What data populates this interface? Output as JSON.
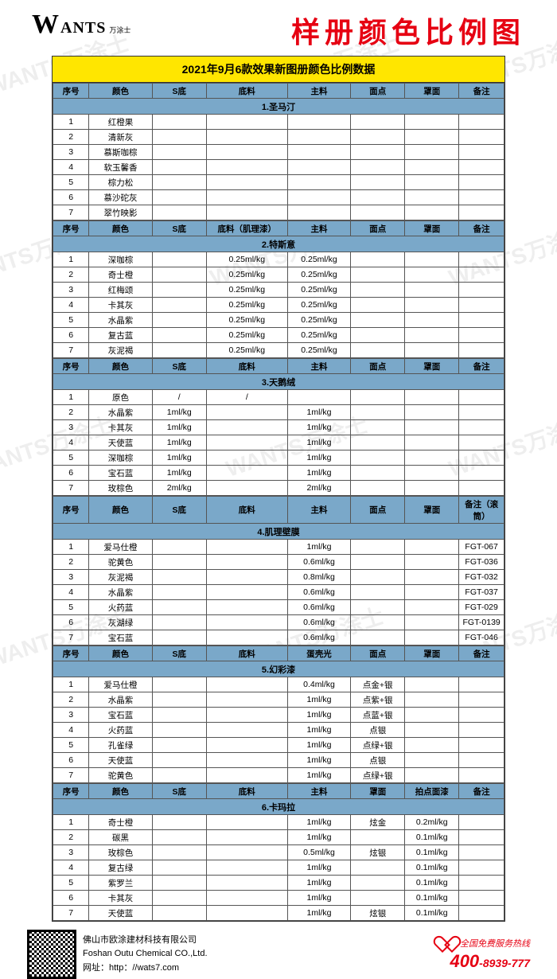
{
  "logo": {
    "w": "W",
    "ants": "ANTS",
    "cn": "万涂士"
  },
  "title": "样册颜色比例图",
  "banner": "2021年9月6款效果新图册颜色比例数据",
  "watermark_text": "WANTS万涂士",
  "columns_default": [
    "序号",
    "颜色",
    "S底",
    "底料",
    "主料",
    "面点",
    "罩面",
    "备注"
  ],
  "sections": [
    {
      "name": "1.圣马汀",
      "headers": [
        "序号",
        "颜色",
        "S底",
        "底料",
        "主料",
        "面点",
        "罩面",
        "备注"
      ],
      "rows": [
        [
          "1",
          "红橙果",
          "",
          "",
          "",
          "",
          "",
          ""
        ],
        [
          "2",
          "清新灰",
          "",
          "",
          "",
          "",
          "",
          ""
        ],
        [
          "3",
          "慕斯咖棕",
          "",
          "",
          "",
          "",
          "",
          ""
        ],
        [
          "4",
          "软玉馨香",
          "",
          "",
          "",
          "",
          "",
          ""
        ],
        [
          "5",
          "棕力松",
          "",
          "",
          "",
          "",
          "",
          ""
        ],
        [
          "6",
          "慕沙砣灰",
          "",
          "",
          "",
          "",
          "",
          ""
        ],
        [
          "7",
          "翠竹映影",
          "",
          "",
          "",
          "",
          "",
          ""
        ]
      ]
    },
    {
      "name": "2.特斯意",
      "headers": [
        "序号",
        "颜色",
        "S底",
        "底料（肌理漆）",
        "主料",
        "面点",
        "罩面",
        "备注"
      ],
      "rows": [
        [
          "1",
          "深咖棕",
          "",
          "0.25ml/kg",
          "0.25ml/kg",
          "",
          "",
          ""
        ],
        [
          "2",
          "奇士橙",
          "",
          "0.25ml/kg",
          "0.25ml/kg",
          "",
          "",
          ""
        ],
        [
          "3",
          "红梅颂",
          "",
          "0.25ml/kg",
          "0.25ml/kg",
          "",
          "",
          ""
        ],
        [
          "4",
          "卡其灰",
          "",
          "0.25ml/kg",
          "0.25ml/kg",
          "",
          "",
          ""
        ],
        [
          "5",
          "水晶紫",
          "",
          "0.25ml/kg",
          "0.25ml/kg",
          "",
          "",
          ""
        ],
        [
          "6",
          "复古蓝",
          "",
          "0.25ml/kg",
          "0.25ml/kg",
          "",
          "",
          ""
        ],
        [
          "7",
          "灰泥褐",
          "",
          "0.25ml/kg",
          "0.25ml/kg",
          "",
          "",
          ""
        ]
      ]
    },
    {
      "name": "3.天鹅绒",
      "headers": [
        "序号",
        "颜色",
        "S底",
        "底料",
        "主料",
        "面点",
        "罩面",
        "备注"
      ],
      "rows": [
        [
          "1",
          "原色",
          "/",
          "/",
          "",
          "",
          "",
          ""
        ],
        [
          "2",
          "水晶紫",
          "1ml/kg",
          "",
          "1ml/kg",
          "",
          "",
          ""
        ],
        [
          "3",
          "卡其灰",
          "1ml/kg",
          "",
          "1ml/kg",
          "",
          "",
          ""
        ],
        [
          "4",
          "天使蓝",
          "1ml/kg",
          "",
          "1ml/kg",
          "",
          "",
          ""
        ],
        [
          "5",
          "深咖棕",
          "1ml/kg",
          "",
          "1ml/kg",
          "",
          "",
          ""
        ],
        [
          "6",
          "宝石蓝",
          "1ml/kg",
          "",
          "1ml/kg",
          "",
          "",
          ""
        ],
        [
          "7",
          "玫棕色",
          "2ml/kg",
          "",
          "2ml/kg",
          "",
          "",
          ""
        ]
      ]
    },
    {
      "name": "4.肌理壁膜",
      "headers": [
        "序号",
        "颜色",
        "S底",
        "底料",
        "主料",
        "面点",
        "罩面",
        "备注（滚筒）"
      ],
      "rows": [
        [
          "1",
          "爱马仕橙",
          "",
          "",
          "1ml/kg",
          "",
          "",
          "FGT-067"
        ],
        [
          "2",
          "驼黄色",
          "",
          "",
          "0.6ml/kg",
          "",
          "",
          "FGT-036"
        ],
        [
          "3",
          "灰泥褐",
          "",
          "",
          "0.8ml/kg",
          "",
          "",
          "FGT-032"
        ],
        [
          "4",
          "水晶紫",
          "",
          "",
          "0.6ml/kg",
          "",
          "",
          "FGT-037"
        ],
        [
          "5",
          "火药蓝",
          "",
          "",
          "0.6ml/kg",
          "",
          "",
          "FGT-029"
        ],
        [
          "6",
          "灰湖绿",
          "",
          "",
          "0.6ml/kg",
          "",
          "",
          "FGT-0139"
        ],
        [
          "7",
          "宝石蓝",
          "",
          "",
          "0.6ml/kg",
          "",
          "",
          "FGT-046"
        ]
      ]
    },
    {
      "name": "5.幻彩漆",
      "headers": [
        "序号",
        "颜色",
        "S底",
        "底料",
        "蛋壳光",
        "面点",
        "罩面",
        "备注"
      ],
      "rows": [
        [
          "1",
          "爱马仕橙",
          "",
          "",
          "0.4ml/kg",
          "点金+银",
          "",
          ""
        ],
        [
          "2",
          "水晶紫",
          "",
          "",
          "1ml/kg",
          "点紫+银",
          "",
          ""
        ],
        [
          "3",
          "宝石蓝",
          "",
          "",
          "1ml/kg",
          "点蓝+银",
          "",
          ""
        ],
        [
          "4",
          "火药蓝",
          "",
          "",
          "1ml/kg",
          "点银",
          "",
          ""
        ],
        [
          "5",
          "孔雀绿",
          "",
          "",
          "1ml/kg",
          "点绿+银",
          "",
          ""
        ],
        [
          "6",
          "天使蓝",
          "",
          "",
          "1ml/kg",
          "点银",
          "",
          ""
        ],
        [
          "7",
          "驼黄色",
          "",
          "",
          "1ml/kg",
          "点绿+银",
          "",
          ""
        ]
      ]
    },
    {
      "name": "6.卡玛拉",
      "headers": [
        "序号",
        "颜色",
        "S底",
        "底料",
        "主料",
        "罩面",
        "拍点面漆",
        "备注"
      ],
      "rows": [
        [
          "1",
          "奇士橙",
          "",
          "",
          "1ml/kg",
          "炫金",
          "0.2ml/kg",
          ""
        ],
        [
          "2",
          "碳黑",
          "",
          "",
          "1ml/kg",
          "",
          "0.1ml/kg",
          ""
        ],
        [
          "3",
          "玫棕色",
          "",
          "",
          "0.5ml/kg",
          "炫银",
          "0.1ml/kg",
          ""
        ],
        [
          "4",
          "复古绿",
          "",
          "",
          "1ml/kg",
          "",
          "0.1ml/kg",
          ""
        ],
        [
          "5",
          "紫罗兰",
          "",
          "",
          "1ml/kg",
          "",
          "0.1ml/kg",
          ""
        ],
        [
          "6",
          "卡其灰",
          "",
          "",
          "1ml/kg",
          "",
          "0.1ml/kg",
          ""
        ],
        [
          "7",
          "天使蓝",
          "",
          "",
          "1ml/kg",
          "炫银",
          "0.1ml/kg",
          ""
        ]
      ]
    }
  ],
  "company": {
    "line1": "佛山市欧涂建材科技有限公司",
    "line2": "Foshan Outu Chemical CO.,Ltd.",
    "line3": "网址：http：//wats7.com"
  },
  "hotline": {
    "label": "全国免费服务热线",
    "num_big": "400",
    "num_small": "-8939-777"
  }
}
